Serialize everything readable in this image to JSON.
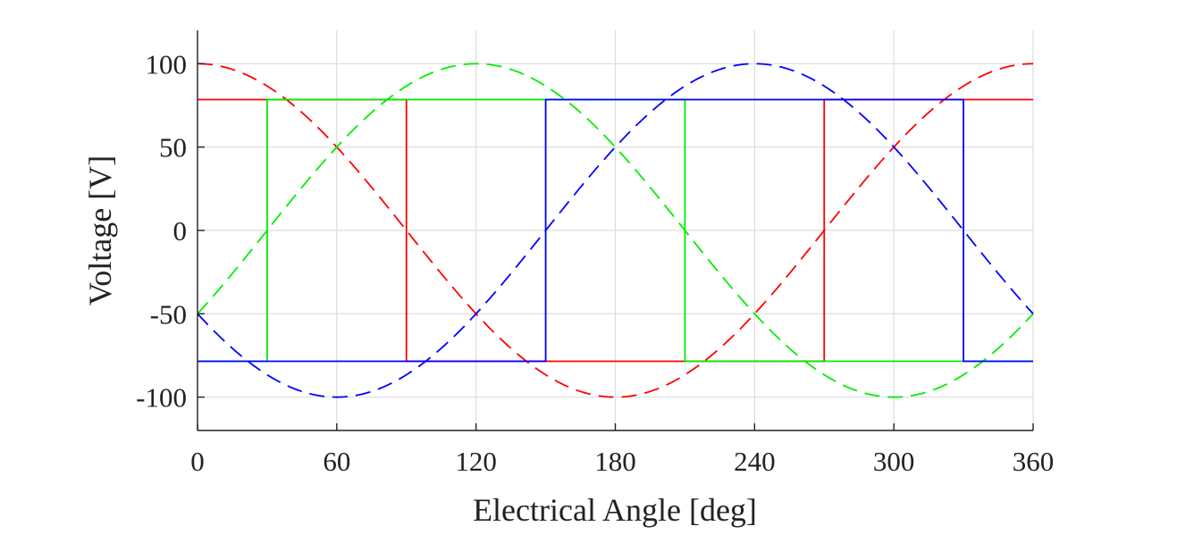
{
  "chart_data": {
    "type": "line",
    "title": "",
    "xlabel": "Electrical Angle [deg]",
    "ylabel": "Voltage [V]",
    "xlim": [
      0,
      360
    ],
    "ylim": [
      -120,
      120
    ],
    "xticks": [
      0,
      60,
      120,
      180,
      240,
      300,
      360
    ],
    "yticks": [
      100,
      50,
      0,
      -50,
      -100
    ],
    "xtick_labels": [
      "0",
      "60",
      "120",
      "180",
      "240",
      "300",
      "360"
    ],
    "ytick_labels": [
      "100",
      "50",
      "0",
      "-50",
      "-100"
    ],
    "grid": true,
    "series": [
      {
        "color": "#ff0000",
        "style": "dashed",
        "kind": "sinusoid",
        "amplitude": 100,
        "phase_deg": 0,
        "x": [
          0,
          30,
          60,
          90,
          120,
          150,
          180,
          210,
          240,
          270,
          300,
          330,
          360
        ],
        "values": [
          100,
          86.6,
          50,
          0,
          -50,
          -86.6,
          -100,
          -86.6,
          -50,
          0,
          50,
          86.6,
          100
        ]
      },
      {
        "color": "#00ee00",
        "style": "dashed",
        "kind": "sinusoid",
        "amplitude": 100,
        "phase_deg": -120,
        "x": [
          0,
          30,
          60,
          90,
          120,
          150,
          180,
          210,
          240,
          270,
          300,
          330,
          360
        ],
        "values": [
          -50,
          0,
          50,
          86.6,
          100,
          86.6,
          50,
          0,
          -50,
          -86.6,
          -100,
          -86.6,
          -50
        ]
      },
      {
        "color": "#0000ff",
        "style": "dashed",
        "kind": "sinusoid",
        "amplitude": 100,
        "phase_deg": 120,
        "x": [
          0,
          30,
          60,
          90,
          120,
          150,
          180,
          210,
          240,
          270,
          300,
          330,
          360
        ],
        "values": [
          -50,
          -86.6,
          -100,
          -86.6,
          -50,
          0,
          50,
          86.6,
          100,
          86.6,
          50,
          0,
          -50
        ]
      },
      {
        "color": "#ff0000",
        "style": "solid",
        "kind": "step",
        "x": [
          0,
          90,
          90,
          270,
          270,
          360
        ],
        "values": [
          78.5,
          78.5,
          -78.5,
          -78.5,
          78.5,
          78.5
        ]
      },
      {
        "color": "#00ee00",
        "style": "solid",
        "kind": "step",
        "x": [
          0,
          30,
          30,
          210,
          210,
          360
        ],
        "values": [
          -78.5,
          -78.5,
          78.5,
          78.5,
          -78.5,
          -78.5
        ]
      },
      {
        "color": "#0000ff",
        "style": "solid",
        "kind": "step",
        "x": [
          0,
          150,
          150,
          330,
          330,
          360
        ],
        "values": [
          -78.5,
          -78.5,
          78.5,
          78.5,
          -78.5,
          -78.5
        ]
      }
    ]
  }
}
